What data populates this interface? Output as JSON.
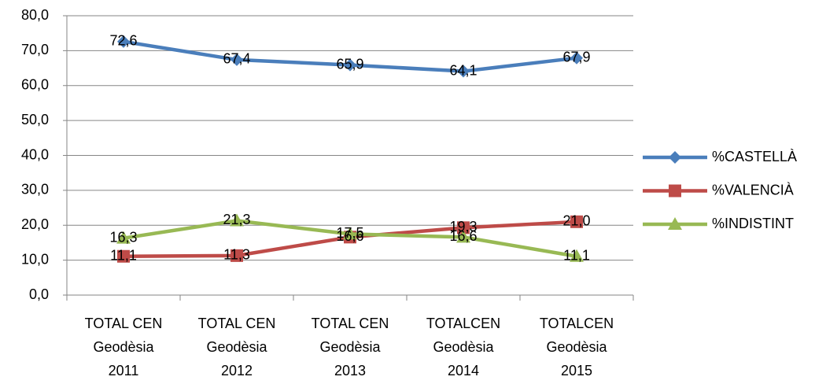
{
  "chart_data": {
    "type": "line",
    "categories": [
      [
        "TOTAL CEN",
        "Geodèsia",
        "2011"
      ],
      [
        "TOTAL CEN",
        "Geodèsia",
        "2012"
      ],
      [
        "TOTAL CEN",
        "Geodèsia",
        "2013"
      ],
      [
        "TOTALCEN",
        "Geodèsia",
        "2014"
      ],
      [
        "TOTALCEN",
        "Geodèsia",
        "2015"
      ]
    ],
    "series": [
      {
        "name": "%CASTELLÀ",
        "color": "#4a7ebb",
        "marker": "diamond",
        "values": [
          72.6,
          67.4,
          65.9,
          64.1,
          67.9
        ],
        "value_labels": [
          "72,6",
          "67,4",
          "65,9",
          "64,1",
          "67,9"
        ]
      },
      {
        "name": "%VALENCIÀ",
        "color": "#be4b48",
        "marker": "square",
        "values": [
          11.1,
          11.3,
          16.6,
          19.3,
          21.0
        ],
        "value_labels": [
          "11,1",
          "11,3",
          "16,6",
          "19,3",
          "21,0"
        ]
      },
      {
        "name": "%INDISTINT",
        "color": "#98b954",
        "marker": "triangle",
        "values": [
          16.3,
          21.3,
          17.5,
          16.6,
          11.1
        ],
        "value_labels": [
          "16,3",
          "21,3",
          "17,5",
          "16,6",
          "11,1"
        ]
      }
    ],
    "ylim": [
      0,
      80
    ],
    "yticks": [
      {
        "value": 0,
        "label": "0,0"
      },
      {
        "value": 10,
        "label": "10,0"
      },
      {
        "value": 20,
        "label": "20,0"
      },
      {
        "value": 30,
        "label": "30,0"
      },
      {
        "value": 40,
        "label": "40,0"
      },
      {
        "value": 50,
        "label": "50,0"
      },
      {
        "value": 60,
        "label": "60,0"
      },
      {
        "value": 70,
        "label": "70,0"
      },
      {
        "value": 80,
        "label": "80,0"
      }
    ],
    "grid": true,
    "legend": "right"
  }
}
